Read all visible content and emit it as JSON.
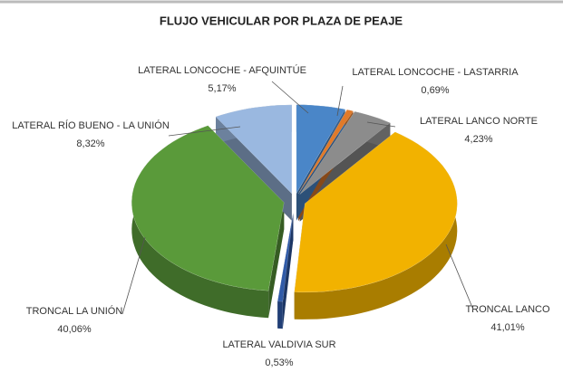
{
  "chart_data": {
    "type": "pie3d",
    "title": "FLUJO VEHICULAR POR PLAZA DE PEAJE",
    "categories": [
      "LATERAL LONCOCHE - AFQUINTÚE",
      "LATERAL LONCOCHE - LASTARRIA",
      "LATERAL LANCO NORTE",
      "TRONCAL LANCO",
      "LATERAL VALDIVIA SUR",
      "TRONCAL LA UNIÓN",
      "LATERAL RÍO BUENO - LA UNIÓN"
    ],
    "values": [
      5.17,
      0.69,
      4.23,
      41.01,
      0.53,
      40.06,
      8.32
    ],
    "value_labels": [
      "5,17%",
      "0,69%",
      "4,23%",
      "41,01%",
      "0,53%",
      "40,06%",
      "8,32%"
    ],
    "colors": [
      "#4a86c8",
      "#e07a2a",
      "#8c8c8c",
      "#f2b200",
      "#2f5aa8",
      "#5a9a3a",
      "#9ab8e0"
    ]
  }
}
